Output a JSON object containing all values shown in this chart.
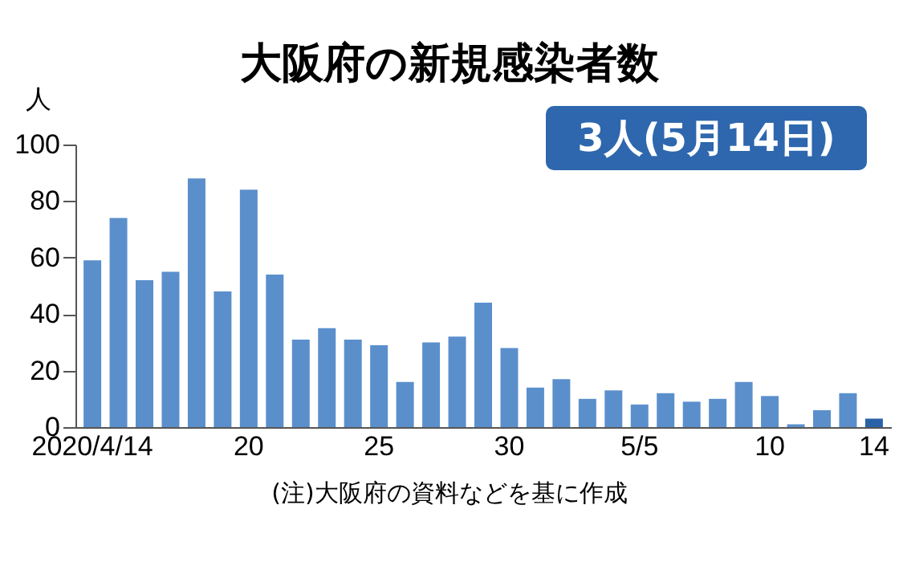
{
  "chart_data": {
    "type": "bar",
    "title": "大阪府の新規感染者数",
    "ylabel": "人",
    "categories": [
      "2020/4/14",
      null,
      null,
      null,
      null,
      null,
      "20",
      null,
      null,
      null,
      null,
      "25",
      null,
      null,
      null,
      null,
      "30",
      null,
      null,
      null,
      null,
      "5/5",
      null,
      null,
      null,
      null,
      "10",
      null,
      null,
      null,
      "14"
    ],
    "values": [
      59,
      74,
      52,
      55,
      88,
      48,
      84,
      54,
      31,
      35,
      31,
      29,
      16,
      30,
      32,
      44,
      28,
      14,
      17,
      10,
      13,
      8,
      12,
      9,
      10,
      16,
      11,
      1,
      6,
      12,
      3
    ],
    "colors": [
      "#5b8fcc",
      "#5b8fcc",
      "#5b8fcc",
      "#5b8fcc",
      "#5b8fcc",
      "#5b8fcc",
      "#5b8fcc",
      "#5b8fcc",
      "#5b8fcc",
      "#5b8fcc",
      "#5b8fcc",
      "#5b8fcc",
      "#5b8fcc",
      "#5b8fcc",
      "#5b8fcc",
      "#5b8fcc",
      "#5b8fcc",
      "#5b8fcc",
      "#5b8fcc",
      "#5b8fcc",
      "#5b8fcc",
      "#5b8fcc",
      "#5b8fcc",
      "#5b8fcc",
      "#5b8fcc",
      "#5b8fcc",
      "#5b8fcc",
      "#5b8fcc",
      "#5b8fcc",
      "#5b8fcc",
      "#2a62a8"
    ],
    "ylim": [
      0,
      100
    ],
    "yticks": [
      0,
      20,
      40,
      60,
      80,
      100
    ],
    "grid": false,
    "annotations": [
      "3人(5月14日)",
      "(注)大阪府の資料などを基に作成"
    ]
  }
}
